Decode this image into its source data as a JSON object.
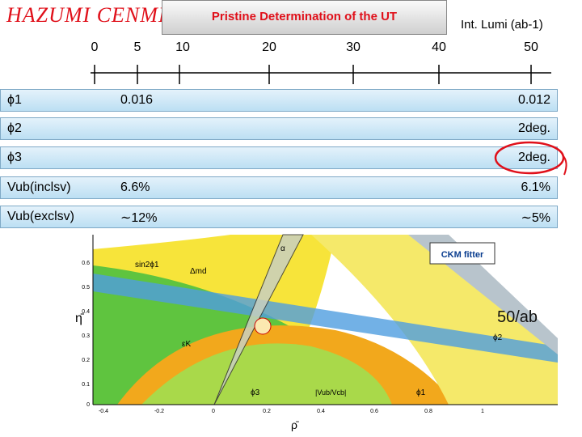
{
  "header": {
    "handwriting": "HAZUMI CENMI",
    "title": "Pristine Determination of the UT",
    "axis_label": "Int. Lumi (ab-1)"
  },
  "axis_ticks": [
    "0",
    "5",
    "10",
    "20",
    "30",
    "40",
    "50"
  ],
  "rows": [
    {
      "label": "ϕ1",
      "early": "0.016",
      "final": "0.012"
    },
    {
      "label": "ϕ2",
      "final": "2deg."
    },
    {
      "label": "ϕ3",
      "final": "2deg."
    },
    {
      "label": "Vub(inclsv)",
      "early": "6.6%",
      "final": "6.1%"
    },
    {
      "label": "Vub(exclsv)",
      "early": "∼12%",
      "final": "∼5%"
    }
  ],
  "plot": {
    "note": "50/ab",
    "logo": "CKM fitter",
    "y_label": "η̄",
    "x_label": "ρ̄",
    "x_ticks": [
      "-0.4",
      "-0.2",
      "0",
      "0.2",
      "0.4",
      "0.6",
      "0.8",
      "1"
    ],
    "y_ticks": [
      "0.6",
      "0.5",
      "0.4",
      "0.3",
      "0.2",
      "0.1",
      "0"
    ],
    "labels": [
      "Δmd",
      "εK",
      "sin2ϕ1",
      "ϕ2",
      "ϕ3",
      "ϕ1",
      "|Vub/Vcb|",
      "α"
    ]
  }
}
